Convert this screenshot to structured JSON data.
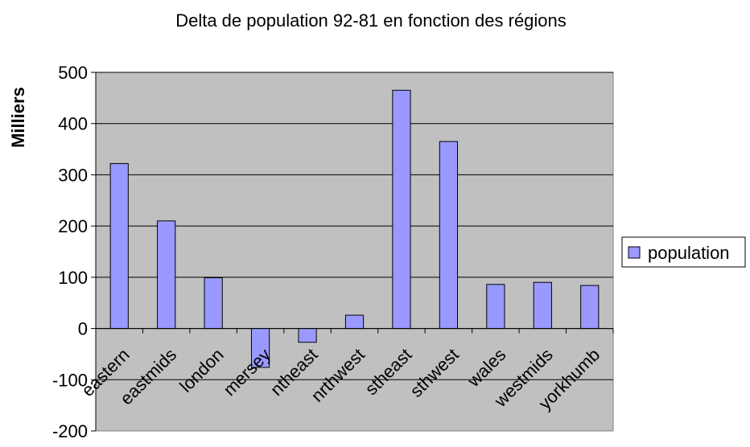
{
  "chart_data": {
    "type": "bar",
    "title": "Delta de population 92-81 en fonction des régions",
    "xlabel": "",
    "ylabel": "Milliers",
    "ylim": [
      -200,
      500
    ],
    "yticks": [
      -200,
      -100,
      0,
      100,
      200,
      300,
      400,
      500
    ],
    "grid": true,
    "legend_position": "right",
    "categories": [
      "eastern",
      "eastmids",
      "london",
      "mersey",
      "ntheast",
      "nrthwest",
      "stheast",
      "sthwest",
      "wales",
      "westmids",
      "yorkhumb"
    ],
    "series": [
      {
        "name": "population",
        "color": "#9999ff",
        "values": [
          322,
          210,
          99,
          -76,
          -27,
          26,
          465,
          365,
          86,
          90,
          84
        ]
      }
    ],
    "plot_background": "#c0c0c0"
  }
}
